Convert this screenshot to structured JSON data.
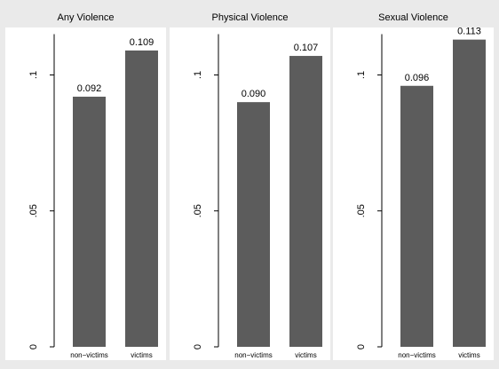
{
  "chart_data": {
    "type": "bar",
    "categories": [
      "non−victims",
      "victims"
    ],
    "ylim": [
      0,
      0.115
    ],
    "yticks": [
      {
        "value": 0,
        "label": "0"
      },
      {
        "value": 0.05,
        "label": ".05"
      },
      {
        "value": 0.1,
        "label": ".1"
      }
    ],
    "grid": false,
    "panels": [
      {
        "title": "Any Violence",
        "values": [
          0.092,
          0.109
        ],
        "data_labels": [
          "0.092",
          "0.109"
        ]
      },
      {
        "title": "Physical Violence",
        "values": [
          0.09,
          0.107
        ],
        "data_labels": [
          "0.090",
          "0.107"
        ]
      },
      {
        "title": "Sexual Violence",
        "values": [
          0.096,
          0.113
        ],
        "data_labels": [
          "0.096",
          "0.113"
        ]
      }
    ],
    "colors": {
      "bar": "#5c5c5c",
      "plot_background": "#ffffff",
      "outer_background": "#eaeaea"
    }
  }
}
